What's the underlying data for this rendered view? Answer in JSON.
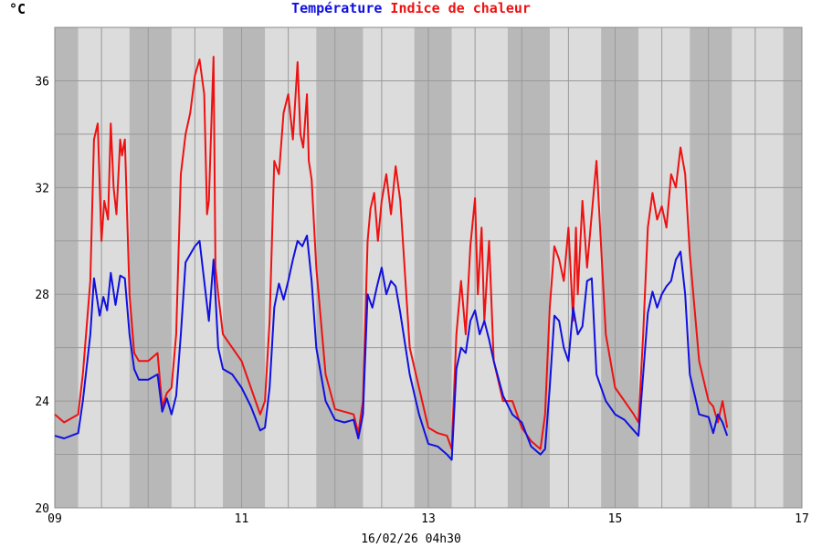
{
  "unit_label": "°C",
  "legend": {
    "temperature": "Température",
    "heat_index": "Indice de chaleur"
  },
  "footer_timestamp": "16/02/26 04h30",
  "colors": {
    "temperature": "#1010e0",
    "heat_index": "#ee1111",
    "plot_bg": "#dcdcdc",
    "plot_bg_dark": "#b8b8b8",
    "grid": "#999999"
  },
  "chart_data": {
    "type": "line",
    "title": "",
    "ylabel": "°C",
    "xlim": [
      9,
      17
    ],
    "ylim": [
      20,
      38
    ],
    "x_ticks": [
      "09",
      "11",
      "13",
      "15",
      "17"
    ],
    "y_ticks": [
      20,
      24,
      28,
      32,
      36
    ],
    "grid": true,
    "series": [
      {
        "name": "Température",
        "color": "#1010e0",
        "x": [
          9.0,
          9.1,
          9.25,
          9.3,
          9.38,
          9.42,
          9.48,
          9.52,
          9.56,
          9.6,
          9.65,
          9.7,
          9.75,
          9.8,
          9.85,
          9.9,
          10.0,
          10.1,
          10.15,
          10.2,
          10.25,
          10.3,
          10.35,
          10.4,
          10.45,
          10.5,
          10.55,
          10.6,
          10.65,
          10.7,
          10.75,
          10.8,
          10.9,
          11.0,
          11.1,
          11.2,
          11.25,
          11.3,
          11.35,
          11.4,
          11.45,
          11.5,
          11.55,
          11.6,
          11.65,
          11.7,
          11.75,
          11.8,
          11.9,
          12.0,
          12.1,
          12.2,
          12.25,
          12.3,
          12.35,
          12.4,
          12.45,
          12.5,
          12.55,
          12.6,
          12.65,
          12.7,
          12.8,
          12.9,
          13.0,
          13.1,
          13.2,
          13.25,
          13.3,
          13.35,
          13.4,
          13.45,
          13.5,
          13.55,
          13.6,
          13.65,
          13.7,
          13.8,
          13.9,
          14.0,
          14.1,
          14.2,
          14.25,
          14.3,
          14.35,
          14.4,
          14.45,
          14.5,
          14.55,
          14.6,
          14.65,
          14.7,
          14.75,
          14.8,
          14.9,
          15.0,
          15.1,
          15.2,
          15.25,
          15.3,
          15.35,
          15.4,
          15.45,
          15.5,
          15.55,
          15.6,
          15.65,
          15.7,
          15.75,
          15.8,
          15.9,
          16.0,
          16.05,
          16.1,
          16.15,
          16.2
        ],
        "values": [
          22.7,
          22.6,
          22.8,
          24.0,
          26.5,
          28.6,
          27.2,
          27.9,
          27.4,
          28.8,
          27.6,
          28.7,
          28.6,
          26.5,
          25.2,
          24.8,
          24.8,
          25.0,
          23.6,
          24.1,
          23.5,
          24.2,
          26.5,
          29.2,
          29.5,
          29.8,
          30.0,
          28.5,
          27.0,
          29.3,
          26.0,
          25.2,
          25.0,
          24.5,
          23.8,
          22.9,
          23.0,
          24.5,
          27.5,
          28.4,
          27.8,
          28.5,
          29.3,
          30.0,
          29.8,
          30.2,
          28.5,
          26.0,
          24.0,
          23.3,
          23.2,
          23.3,
          22.6,
          23.5,
          28.0,
          27.5,
          28.3,
          29.0,
          28.0,
          28.5,
          28.3,
          27.3,
          25.0,
          23.5,
          22.4,
          22.3,
          22.0,
          21.8,
          25.2,
          26.0,
          25.8,
          27.0,
          27.4,
          26.5,
          27.0,
          26.3,
          25.5,
          24.2,
          23.5,
          23.2,
          22.3,
          22.0,
          22.2,
          24.5,
          27.2,
          27.0,
          26.0,
          25.5,
          27.5,
          26.5,
          26.8,
          28.5,
          28.6,
          25.0,
          24.0,
          23.5,
          23.3,
          22.9,
          22.7,
          25.0,
          27.3,
          28.1,
          27.5,
          28.0,
          28.3,
          28.5,
          29.3,
          29.6,
          28.0,
          25.0,
          23.5,
          23.4,
          22.8,
          23.5,
          23.2,
          22.7
        ]
      },
      {
        "name": "Indice de chaleur",
        "color": "#ee1111",
        "x": [
          9.0,
          9.1,
          9.25,
          9.3,
          9.38,
          9.42,
          9.46,
          9.5,
          9.53,
          9.57,
          9.6,
          9.63,
          9.66,
          9.7,
          9.72,
          9.75,
          9.8,
          9.85,
          9.9,
          10.0,
          10.1,
          10.15,
          10.2,
          10.25,
          10.3,
          10.35,
          10.4,
          10.45,
          10.5,
          10.55,
          10.6,
          10.63,
          10.65,
          10.7,
          10.72,
          10.75,
          10.8,
          10.9,
          11.0,
          11.1,
          11.2,
          11.25,
          11.3,
          11.35,
          11.4,
          11.45,
          11.5,
          11.55,
          11.6,
          11.63,
          11.66,
          11.7,
          11.72,
          11.75,
          11.8,
          11.9,
          12.0,
          12.1,
          12.2,
          12.25,
          12.3,
          12.35,
          12.38,
          12.42,
          12.46,
          12.5,
          12.55,
          12.6,
          12.65,
          12.7,
          12.8,
          12.9,
          13.0,
          13.1,
          13.2,
          13.25,
          13.3,
          13.35,
          13.4,
          13.45,
          13.5,
          13.53,
          13.57,
          13.6,
          13.65,
          13.7,
          13.8,
          13.9,
          14.0,
          14.1,
          14.2,
          14.25,
          14.3,
          14.35,
          14.4,
          14.45,
          14.5,
          14.55,
          14.58,
          14.6,
          14.65,
          14.7,
          14.75,
          14.8,
          14.9,
          15.0,
          15.1,
          15.2,
          15.25,
          15.3,
          15.35,
          15.4,
          15.45,
          15.5,
          15.55,
          15.6,
          15.65,
          15.7,
          15.75,
          15.8,
          15.9,
          16.0,
          16.05,
          16.1,
          16.15,
          16.2
        ],
        "values": [
          23.5,
          23.2,
          23.5,
          25.0,
          28.5,
          33.8,
          34.4,
          30.0,
          31.5,
          30.8,
          34.4,
          32.0,
          31.0,
          33.8,
          33.2,
          33.8,
          28.0,
          25.8,
          25.5,
          25.5,
          25.8,
          23.8,
          24.3,
          24.5,
          26.5,
          32.5,
          34.0,
          34.8,
          36.2,
          36.8,
          35.5,
          31.0,
          31.5,
          36.9,
          29.0,
          28.0,
          26.5,
          26.0,
          25.5,
          24.5,
          23.5,
          24.0,
          27.0,
          33.0,
          32.5,
          34.8,
          35.5,
          33.8,
          36.7,
          34.0,
          33.5,
          35.5,
          33.0,
          32.3,
          29.0,
          25.0,
          23.7,
          23.6,
          23.5,
          22.8,
          24.0,
          30.0,
          31.2,
          31.8,
          30.0,
          31.5,
          32.5,
          31.0,
          32.8,
          31.5,
          26.0,
          24.5,
          23.0,
          22.8,
          22.7,
          22.2,
          26.5,
          28.5,
          26.5,
          29.8,
          31.6,
          28.0,
          30.5,
          27.0,
          30.0,
          25.5,
          24.0,
          24.0,
          23.0,
          22.5,
          22.2,
          23.5,
          27.5,
          29.8,
          29.3,
          28.5,
          30.5,
          27.0,
          30.5,
          28.0,
          31.5,
          29.0,
          31.0,
          33.0,
          26.5,
          24.5,
          24.0,
          23.5,
          23.2,
          26.5,
          30.5,
          31.8,
          30.8,
          31.3,
          30.5,
          32.5,
          32.0,
          33.5,
          32.5,
          29.5,
          25.5,
          24.0,
          23.8,
          23.2,
          24.0,
          23.0
        ]
      }
    ]
  }
}
